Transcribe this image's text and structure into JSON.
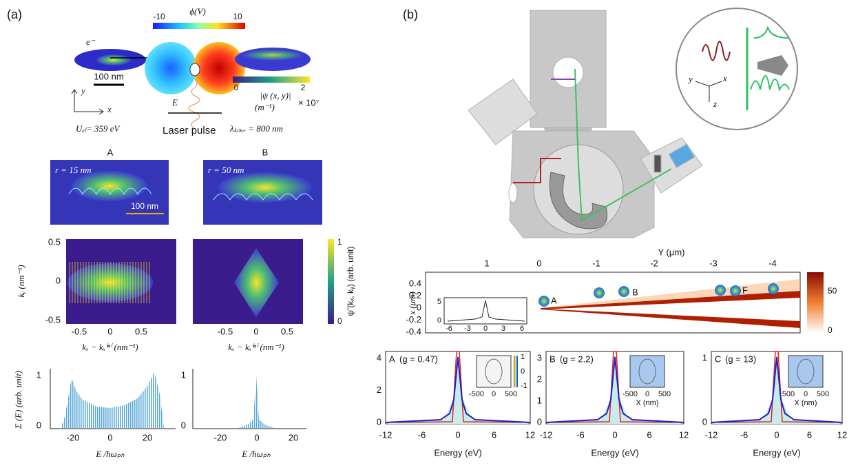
{
  "panel_a": {
    "label": "(a)",
    "phi_label": "ϕ(V)",
    "phi_min": -10,
    "phi_max": 10,
    "electron": "e⁻",
    "scale": "100 nm",
    "psi_label": "|ψ (x, y)|",
    "psi_unit": "(m⁻¹)",
    "psi_min": 0,
    "psi_max": 2,
    "psi_mult": "× 10⁷",
    "axis_y": "y",
    "axis_x": "x",
    "field": "E⃗",
    "energy": "Uₑₗ= 359 eV",
    "laser": "Laser pulse",
    "wavelength": "λₗₐₛₑᵣ = 800 nm",
    "sub_a": {
      "title": "A",
      "radius": "r = 15 nm",
      "scale": "100 nm"
    },
    "sub_b": {
      "title": "B",
      "radius": "r = 50 nm"
    },
    "k_ylabel": "kᵧ (nm⁻¹)",
    "k_yticks": [
      0.5,
      0,
      -0.5
    ],
    "k_xticks": [
      -0.5,
      0,
      0.5
    ],
    "k_xlabel": "kₓ − kₓⁱⁿⁱ (nm⁻¹)",
    "cb_ticks": [
      1,
      0
    ],
    "cb_label": "ψ̃ (kₓ, kᵧ) (arb. unit)",
    "e_ylabel": "Σ (E) (arb. unit)",
    "e_yticks": [
      1,
      0
    ],
    "e_xticks": [
      -20,
      0,
      20
    ],
    "e_xlabel": "E /ħωₚₕ"
  },
  "panel_b": {
    "label": "(b)",
    "map_xlabel": "Y (μm)",
    "map_xticks": [
      1,
      0,
      -1,
      -2,
      -3,
      -4
    ],
    "map_ylabel": "x (μm)",
    "map_yticks": [
      0.4,
      0.2,
      0,
      -0.2,
      -0.4
    ],
    "map_cbticks": [
      50,
      0
    ],
    "inset_yticks": [
      5,
      0
    ],
    "inset_xticks": [
      -6,
      -3,
      0,
      3,
      6
    ],
    "points": [
      "A",
      "B",
      "F"
    ],
    "inset_axes": [
      "y",
      "x",
      "z"
    ],
    "spectra": [
      {
        "tag": "A",
        "g": "(g = 0.47)",
        "yticks": [
          4,
          2,
          0
        ],
        "inset_cb": [
          1,
          0,
          -1
        ],
        "inset_xticks": [
          -500,
          0,
          500
        ]
      },
      {
        "tag": "B",
        "g": "(g = 2.2)",
        "yticks": [
          3,
          2,
          1,
          0
        ],
        "inset_xticks": [
          -500,
          0,
          500
        ]
      },
      {
        "tag": "C",
        "g": "(g = 13)",
        "yticks": [
          1,
          0
        ],
        "inset_xticks": [
          500,
          0,
          500
        ]
      }
    ],
    "spectra_xticks": [
      -12,
      -6,
      0,
      6,
      12
    ],
    "spectra_xlabel": "Energy (eV)",
    "inset_xlabel": "X (nm)"
  }
}
